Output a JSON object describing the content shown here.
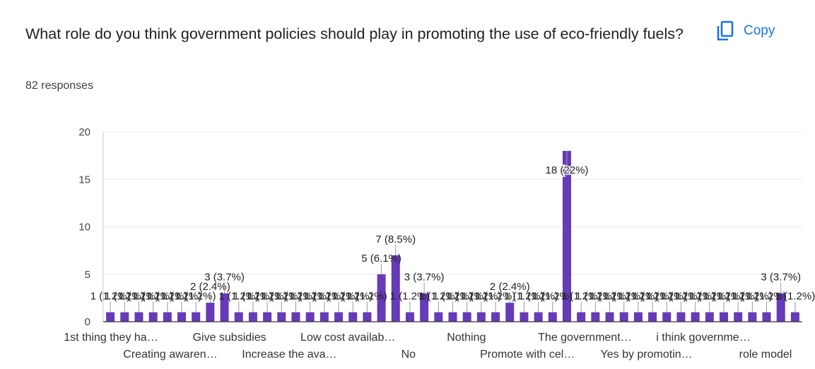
{
  "question": {
    "title": "What role do you think government policies should play in promoting the use of eco-friendly fuels?",
    "responses_label": "82 responses"
  },
  "actions": {
    "copy_label": "Copy",
    "copy_icon": "copy-icon"
  },
  "colors": {
    "bar": "#673ab7",
    "accent": "#1a73e8",
    "grid": "#e8e8e8",
    "axis": "#333333"
  },
  "chart_data": {
    "type": "bar",
    "total": 82,
    "ylim": [
      0,
      20
    ],
    "yticks": [
      0,
      5,
      10,
      15,
      20
    ],
    "grid": true,
    "categories_row1": [
      "1st thing they ha…",
      "Give subsidies",
      "Low cost availab…",
      "Nothing",
      "The government…",
      "i think governme…"
    ],
    "categories_row2": [
      "Creating awaren…",
      "Increase the ava…",
      "No",
      "Promote with cel…",
      "Yes by promotin…",
      "role model"
    ],
    "values": [
      1,
      1,
      1,
      1,
      1,
      1,
      1,
      2,
      3,
      1,
      1,
      1,
      1,
      1,
      1,
      1,
      1,
      1,
      1,
      5,
      7,
      1,
      3,
      1,
      1,
      1,
      1,
      1,
      2,
      1,
      1,
      1,
      18,
      1,
      1,
      1,
      1,
      1,
      1,
      1,
      1,
      1,
      1,
      1,
      1,
      1,
      1,
      3,
      1
    ],
    "bar_labels": [
      "1 (1.2%)",
      "1 (1.2%)",
      "1 (1.2%)",
      "1 (1.2%)",
      "1 (1.2%)",
      "1 (1.2%)",
      "1 (1.2%)",
      "2 (2.4%)",
      "3 (3.7%)",
      "1 (1.2%)",
      "1 (1.2%)",
      "1 (1.2%)",
      "1 (1.2%)",
      "1 (1.2%)",
      "1 (1.2%)",
      "1 (1.2%)",
      "1 (1.2%)",
      "1 (1.2%)",
      "1 (1.2%)",
      "5 (6.1%)",
      "7 (8.5%)",
      "1 (1.2%)",
      "3 (3.7%)",
      "1 (1.2%)",
      "1 (1.2%)",
      "1 (1.2%)",
      "1 (1.2%)",
      "1 (1.2%)",
      "2 (2.4%)",
      "1 (1.2%)",
      "1 (1.2%)",
      "1 (1.2%)",
      "18 (22%)",
      "1 (1.2%)",
      "1 (1.2%)",
      "1 (1.2%)",
      "1 (1.2%)",
      "1 (1.2%)",
      "1 (1.2%)",
      "1 (1.2%)",
      "1 (1.2%)",
      "1 (1.2%)",
      "1 (1.2%)",
      "1 (1.2%)",
      "1 (1.2%)",
      "1 (1.2%)",
      "1 (1.2%)",
      "3 (3.7%)",
      "1 (1.2%)"
    ]
  }
}
